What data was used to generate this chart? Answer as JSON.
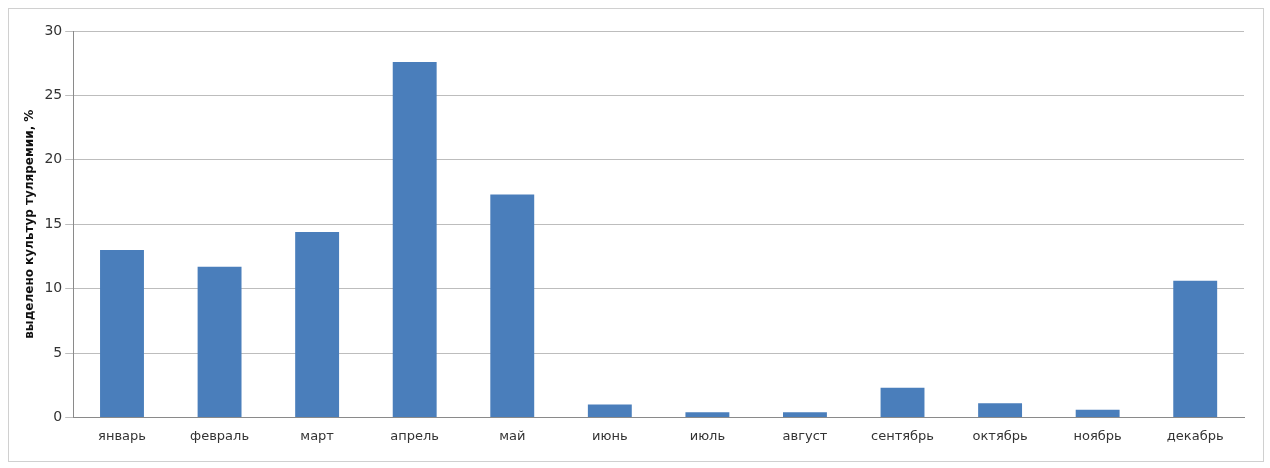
{
  "chart_data": {
    "type": "bar",
    "ylabel": "выделено культур туляремии, %",
    "categories": [
      "январь",
      "февраль",
      "март",
      "апрель",
      "май",
      "июнь",
      "июль",
      "август",
      "сентябрь",
      "октябрь",
      "ноябрь",
      "декабрь"
    ],
    "values": [
      13,
      11.7,
      14.4,
      27.6,
      17.3,
      1,
      0.4,
      0.4,
      2.3,
      1.1,
      0.6,
      10.6
    ],
    "color": "#4a7ebb",
    "ylim": [
      0,
      30
    ],
    "yticks": [
      0,
      5,
      10,
      15,
      20,
      25,
      30
    ],
    "grid": "y",
    "legend": false
  }
}
